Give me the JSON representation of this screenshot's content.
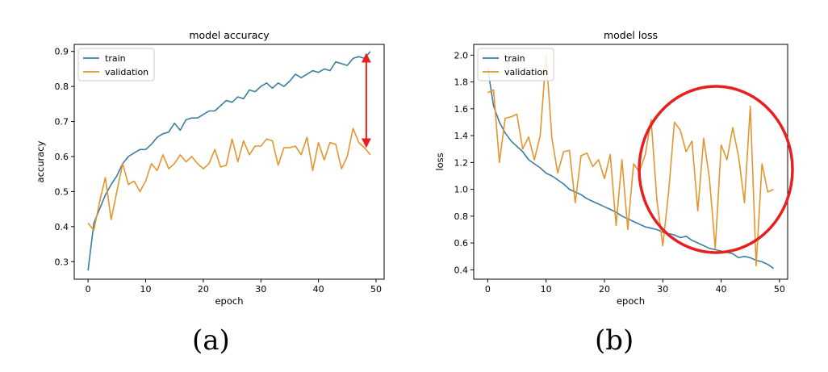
{
  "colors": {
    "train": "#3b7ea1",
    "validation": "#e3952f",
    "annotation": "#e81f1f",
    "axis": "#000000"
  },
  "panels": [
    {
      "label": "(a)"
    },
    {
      "label": "(b)"
    }
  ],
  "chart_data": [
    {
      "type": "line",
      "title": "model accuracy",
      "xlabel": "epoch",
      "ylabel": "accuracy",
      "xlim": [
        -2.4,
        51.4
      ],
      "ylim": [
        0.25,
        0.92
      ],
      "xticks": [
        0,
        10,
        20,
        30,
        40,
        50
      ],
      "yticks": [
        0.3,
        0.4,
        0.5,
        0.6,
        0.7,
        0.8,
        0.9
      ],
      "grid": false,
      "legend": "upper-left",
      "annotation": "double-headed-arrow",
      "x": [
        0,
        1,
        2,
        3,
        4,
        5,
        6,
        7,
        8,
        9,
        10,
        11,
        12,
        13,
        14,
        15,
        16,
        17,
        18,
        19,
        20,
        21,
        22,
        23,
        24,
        25,
        26,
        27,
        28,
        29,
        30,
        31,
        32,
        33,
        34,
        35,
        36,
        37,
        38,
        39,
        40,
        41,
        42,
        43,
        44,
        45,
        46,
        47,
        48,
        49
      ],
      "series": [
        {
          "name": "train",
          "values": [
            0.275,
            0.41,
            0.45,
            0.49,
            0.52,
            0.545,
            0.58,
            0.6,
            0.61,
            0.62,
            0.62,
            0.635,
            0.655,
            0.665,
            0.67,
            0.695,
            0.675,
            0.705,
            0.71,
            0.71,
            0.72,
            0.73,
            0.73,
            0.745,
            0.76,
            0.755,
            0.77,
            0.765,
            0.79,
            0.785,
            0.8,
            0.81,
            0.795,
            0.81,
            0.8,
            0.815,
            0.835,
            0.825,
            0.835,
            0.845,
            0.84,
            0.85,
            0.845,
            0.87,
            0.865,
            0.86,
            0.88,
            0.885,
            0.88,
            0.9
          ]
        },
        {
          "name": "validation",
          "values": [
            0.41,
            0.39,
            0.47,
            0.54,
            0.42,
            0.5,
            0.58,
            0.52,
            0.53,
            0.5,
            0.53,
            0.58,
            0.56,
            0.605,
            0.565,
            0.58,
            0.605,
            0.585,
            0.6,
            0.58,
            0.565,
            0.58,
            0.62,
            0.57,
            0.575,
            0.65,
            0.585,
            0.645,
            0.605,
            0.63,
            0.63,
            0.65,
            0.645,
            0.575,
            0.625,
            0.625,
            0.63,
            0.605,
            0.655,
            0.56,
            0.64,
            0.59,
            0.64,
            0.635,
            0.565,
            0.6,
            0.68,
            0.64,
            0.625,
            0.605
          ]
        }
      ]
    },
    {
      "type": "line",
      "title": "model loss",
      "xlabel": "epoch",
      "ylabel": "loss",
      "xlim": [
        -2.4,
        51.4
      ],
      "ylim": [
        0.33,
        2.08
      ],
      "xticks": [
        0,
        10,
        20,
        30,
        40,
        50
      ],
      "yticks": [
        0.4,
        0.6,
        0.8,
        1.0,
        1.2,
        1.4,
        1.6,
        1.8,
        2.0
      ],
      "grid": false,
      "legend": "upper-left",
      "annotation": "circle",
      "x": [
        0,
        1,
        2,
        3,
        4,
        5,
        6,
        7,
        8,
        9,
        10,
        11,
        12,
        13,
        14,
        15,
        16,
        17,
        18,
        19,
        20,
        21,
        22,
        23,
        24,
        25,
        26,
        27,
        28,
        29,
        30,
        31,
        32,
        33,
        34,
        35,
        36,
        37,
        38,
        39,
        40,
        41,
        42,
        43,
        44,
        45,
        46,
        47,
        48,
        49
      ],
      "series": [
        {
          "name": "train",
          "values": [
            1.9,
            1.62,
            1.5,
            1.42,
            1.36,
            1.32,
            1.28,
            1.22,
            1.19,
            1.16,
            1.12,
            1.1,
            1.07,
            1.04,
            1.0,
            0.98,
            0.96,
            0.93,
            0.91,
            0.89,
            0.87,
            0.85,
            0.83,
            0.8,
            0.78,
            0.76,
            0.74,
            0.72,
            0.71,
            0.7,
            0.68,
            0.67,
            0.66,
            0.64,
            0.65,
            0.62,
            0.6,
            0.58,
            0.56,
            0.55,
            0.54,
            0.53,
            0.52,
            0.49,
            0.5,
            0.49,
            0.47,
            0.46,
            0.44,
            0.41
          ]
        },
        {
          "name": "validation",
          "values": [
            1.72,
            1.74,
            1.2,
            1.53,
            1.54,
            1.56,
            1.3,
            1.39,
            1.22,
            1.4,
            2.0,
            1.38,
            1.12,
            1.28,
            1.29,
            0.9,
            1.25,
            1.27,
            1.17,
            1.22,
            1.08,
            1.26,
            0.73,
            1.22,
            0.7,
            1.19,
            1.13,
            1.26,
            1.52,
            0.92,
            0.58,
            0.98,
            1.5,
            1.44,
            1.28,
            1.36,
            0.84,
            1.38,
            1.08,
            0.56,
            1.33,
            1.22,
            1.46,
            1.24,
            0.9,
            1.62,
            0.43,
            1.19,
            0.98,
            1.0
          ]
        }
      ]
    }
  ]
}
